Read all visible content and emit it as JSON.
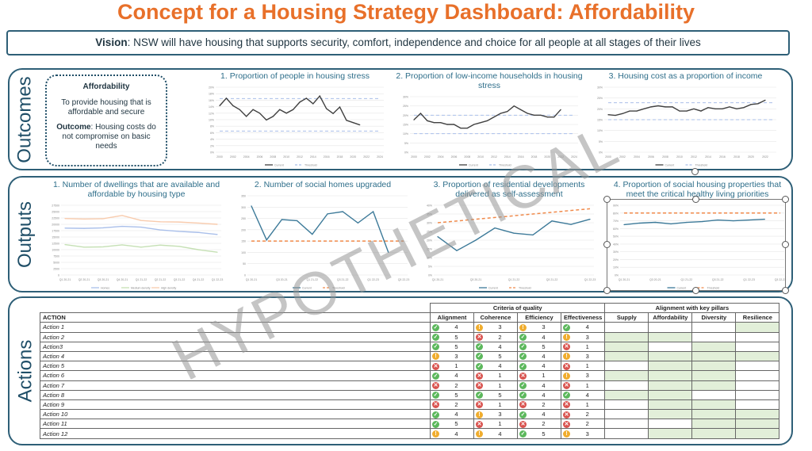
{
  "title": "Concept for a Housing Strategy Dashboard: Affordability",
  "vision": {
    "label": "Vision",
    "text": ": NSW will have housing that supports security, comfort, independence and choice for all people at all stages of their lives"
  },
  "watermark": "HYPOTHETICAL",
  "sections": {
    "outcomes": "Outcomes",
    "outputs": "Outputs",
    "actions": "Actions"
  },
  "affordability": {
    "heading": "Affordability",
    "description": "To provide housing that is affordable and secure",
    "outcome_label": "Outcome",
    "outcome_text": ": Housing costs do not compromise on basic needs"
  },
  "colors": {
    "accent": "#E8702A",
    "frame": "#2E5F77",
    "current": "#404040",
    "current_blue": "#3D7A99",
    "threshold_blue": "#A9BFEA",
    "threshold_orange": "#F08A4B"
  },
  "chart_data": [
    {
      "id": "outcome-1",
      "type": "line",
      "title": "1. Proportion of people in housing stress",
      "ylim": [
        0,
        20
      ],
      "yticks": [
        "0%",
        "2%",
        "4%",
        "6%",
        "8%",
        "10%",
        "12%",
        "14%",
        "16%",
        "18%",
        "20%"
      ],
      "yvals": [
        0,
        2,
        4,
        6,
        8,
        10,
        12,
        14,
        16,
        18,
        20
      ],
      "xcount": 25,
      "xticks": [
        "2000",
        "2002",
        "2004",
        "2006",
        "2008",
        "2010",
        "2012",
        "2014",
        "2016",
        "2018",
        "2020",
        "2022",
        "2024"
      ],
      "xtick_step": 2,
      "series": [
        {
          "name": "Current",
          "color": "#404040",
          "values": [
            14.3,
            16.6,
            14.3,
            13.1,
            11,
            13.1,
            12,
            9.9,
            11,
            13.1,
            12,
            13.1,
            15.4,
            16.6,
            14.9,
            17.3,
            13.4,
            11.9,
            13.9,
            9.8,
            9.1,
            8.4
          ]
        }
      ],
      "thresholds": [
        {
          "name": "Threshold",
          "color": "#A9BFEA",
          "values": [
            16.5,
            16.5
          ]
        },
        {
          "name": "Threshold",
          "color": "#A9BFEA",
          "values": [
            6.5,
            6.5
          ]
        }
      ],
      "legend": [
        "Current",
        "Threshold"
      ]
    },
    {
      "id": "outcome-2",
      "type": "line",
      "title": "2. Proportion of low-income households in housing stress",
      "ylim": [
        0,
        30
      ],
      "yticks": [
        "0%",
        "5%",
        "10%",
        "15%",
        "20%",
        "25%",
        "30%"
      ],
      "yvals": [
        0,
        5,
        10,
        15,
        20,
        25,
        30
      ],
      "xcount": 25,
      "xticks": [
        "2000",
        "2002",
        "2004",
        "2006",
        "2008",
        "2010",
        "2012",
        "2014",
        "2016",
        "2018",
        "2020",
        "2022",
        "2024"
      ],
      "xtick_step": 2,
      "series": [
        {
          "name": "Current",
          "color": "#404040",
          "values": [
            17.5,
            21,
            17,
            16,
            16,
            15,
            15,
            13,
            13,
            15,
            16,
            17,
            19,
            21,
            22,
            25,
            23,
            21,
            20,
            20,
            19,
            19,
            23
          ]
        }
      ],
      "thresholds": [
        {
          "name": "Threshold",
          "color": "#A9BFEA",
          "values": [
            20,
            20
          ]
        },
        {
          "name": "Threshold",
          "color": "#A9BFEA",
          "values": [
            10,
            10
          ]
        }
      ],
      "legend": [
        "Current",
        "Threshold"
      ]
    },
    {
      "id": "outcome-3",
      "type": "line",
      "title": "3. Housing cost as a proportion of income",
      "ylim": [
        0,
        30
      ],
      "yticks": [
        "0%",
        "5%",
        "10%",
        "15%",
        "20%",
        "25%",
        "30%"
      ],
      "yvals": [
        0,
        5,
        10,
        15,
        20,
        25,
        30
      ],
      "xcount": 24,
      "xticks": [
        "2000",
        "2002",
        "2004",
        "2006",
        "2008",
        "2010",
        "2012",
        "2014",
        "2016",
        "2018",
        "2020",
        "2022"
      ],
      "xtick_step": 2,
      "series": [
        {
          "name": "Current",
          "color": "#404040",
          "values": [
            17.3,
            17,
            17.8,
            19,
            19,
            20,
            20.9,
            21.4,
            20.9,
            20.9,
            19,
            19,
            20,
            19,
            20.6,
            20,
            20,
            20.9,
            20,
            20.6,
            22,
            22.4,
            24
          ]
        }
      ],
      "thresholds": [
        {
          "name": "Threshold",
          "color": "#A9BFEA",
          "values": [
            22.8,
            22.8
          ]
        },
        {
          "name": "Threshold",
          "color": "#A9BFEA",
          "values": [
            15,
            15
          ]
        }
      ],
      "legend": [
        "Current",
        "Threshold"
      ]
    },
    {
      "id": "output-1",
      "type": "line",
      "title": "1. Number of dwellings that are available and affordable by housing type",
      "ylim": [
        0,
        27500
      ],
      "yticks": [
        "0",
        "2500",
        "5000",
        "7500",
        "10000",
        "12500",
        "15000",
        "17500",
        "20000",
        "22500",
        "25000",
        "27500"
      ],
      "yvals": [
        0,
        2500,
        5000,
        7500,
        10000,
        12500,
        15000,
        17500,
        20000,
        22500,
        25000,
        27500
      ],
      "xcount": 9,
      "xticks": [
        "Q1 20-21",
        "Q2 20-21",
        "Q3 20-21",
        "Q4 20-21",
        "Q1 21-22",
        "Q2 21-22",
        "Q3 21-22",
        "Q4 21-22",
        "Q1 22-23"
      ],
      "xtick_step": 1,
      "series": [
        {
          "name": "Homes",
          "color": "#A9BFEA",
          "values": [
            18500,
            18400,
            18600,
            19200,
            18900,
            17800,
            17200,
            16800,
            16000
          ]
        },
        {
          "name": "Medium density",
          "color": "#C5E0B4",
          "values": [
            12000,
            11000,
            11100,
            11900,
            11000,
            11800,
            11300,
            10000,
            9000
          ]
        },
        {
          "name": "High density",
          "color": "#F8CBAD",
          "values": [
            22300,
            22100,
            22200,
            23500,
            21500,
            21000,
            20900,
            20500,
            20000
          ]
        }
      ],
      "thresholds": [],
      "legend": [
        "Homes",
        "Medium density",
        "High density"
      ]
    },
    {
      "id": "output-2",
      "type": "line",
      "title": "2. Number of social homes upgraded",
      "ylim": [
        0,
        350
      ],
      "yticks": [
        "0",
        "50",
        "100",
        "150",
        "200",
        "250",
        "300",
        "350"
      ],
      "yvals": [
        0,
        50,
        100,
        150,
        200,
        250,
        300,
        350
      ],
      "xcount": 11,
      "xticks": [
        "Q1 20-21",
        "Q3 20-21",
        "Q1 21-22",
        "Q3 21-22",
        "Q1 22-23",
        "Q3 22-23"
      ],
      "xtick_step": 2,
      "series": [
        {
          "name": "Current",
          "color": "#3D7A99",
          "values": [
            305,
            155,
            245,
            240,
            180,
            270,
            280,
            230,
            280,
            100
          ]
        }
      ],
      "thresholds": [
        {
          "name": "Threshold",
          "color": "#F08A4B",
          "values": [
            150,
            150
          ]
        }
      ],
      "legend": [
        "Current",
        "Threshold"
      ]
    },
    {
      "id": "output-3",
      "type": "line",
      "title": "3. Proportion of residential developments delivered as self-assessment",
      "ylim": [
        0,
        40
      ],
      "yticks": [
        "0%",
        "5%",
        "10%",
        "15%",
        "20%",
        "25%",
        "30%",
        "35%",
        "40%"
      ],
      "yvals": [
        0,
        5,
        10,
        15,
        20,
        25,
        30,
        35,
        40
      ],
      "xcount": 9,
      "xticks": [
        "Q1 20-21",
        "Q3 20-21",
        "Q1 21-22",
        "Q3 21-22",
        "Q1 22-23"
      ],
      "xtick_step": 2,
      "series": [
        {
          "name": "Current",
          "color": "#3D7A99",
          "values": [
            22,
            14,
            20,
            27,
            24,
            23,
            31,
            29,
            32
          ]
        }
      ],
      "thresholds": [
        {
          "name": "Threshold",
          "color": "#F08A4B",
          "values": [
            30,
            38
          ]
        }
      ],
      "legend": [
        "Current",
        "Threshold"
      ]
    },
    {
      "id": "output-4",
      "type": "line",
      "title": "4. Proportion of social housing properties that meet the critical healthy living priorities",
      "ylim": [
        0,
        90
      ],
      "yticks": [
        "0%",
        "10%",
        "20%",
        "30%",
        "40%",
        "50%",
        "60%",
        "70%",
        "80%",
        "90%"
      ],
      "yvals": [
        0,
        10,
        20,
        30,
        40,
        50,
        60,
        70,
        80,
        90
      ],
      "xcount": 11,
      "xticks": [
        "Q1 20-21",
        "Q3 20-21",
        "Q1 21-22",
        "Q3 21-22",
        "Q1 22-23",
        "Q3 22-23"
      ],
      "xtick_step": 2,
      "series": [
        {
          "name": "Current",
          "color": "#3D7A99",
          "values": [
            65,
            67,
            68,
            66,
            68,
            69,
            71,
            70,
            71,
            72
          ]
        }
      ],
      "thresholds": [
        {
          "name": "Threshold",
          "color": "#F08A4B",
          "values": [
            80,
            80
          ]
        }
      ],
      "legend": [
        "Current",
        "Threshold"
      ]
    }
  ],
  "actions_table": {
    "group_criteria": "Criteria of quality",
    "group_pillars": "Alignment with key pillars",
    "action_header": "ACTION",
    "criteria": [
      "Alignment",
      "Coherence",
      "Efficiency",
      "Effectiveness"
    ],
    "pillars": [
      "Supply",
      "Affordability",
      "Diversity",
      "Resilience"
    ],
    "rows": [
      {
        "action": "Action 1",
        "scores": [
          [
            "g",
            4
          ],
          [
            "y",
            3
          ],
          [
            "y",
            3
          ],
          [
            "g",
            4
          ]
        ],
        "pillars": [
          0,
          0,
          0,
          1
        ]
      },
      {
        "action": "Action 2",
        "scores": [
          [
            "g",
            5
          ],
          [
            "r",
            2
          ],
          [
            "g",
            4
          ],
          [
            "y",
            3
          ]
        ],
        "pillars": [
          1,
          1,
          0,
          0
        ]
      },
      {
        "action": "Action3",
        "scores": [
          [
            "g",
            5
          ],
          [
            "g",
            4
          ],
          [
            "g",
            5
          ],
          [
            "r",
            1
          ]
        ],
        "pillars": [
          1,
          0,
          1,
          0
        ]
      },
      {
        "action": "Action 4",
        "scores": [
          [
            "y",
            3
          ],
          [
            "g",
            5
          ],
          [
            "g",
            4
          ],
          [
            "y",
            3
          ]
        ],
        "pillars": [
          1,
          1,
          1,
          1
        ]
      },
      {
        "action": "Action 5",
        "scores": [
          [
            "r",
            1
          ],
          [
            "g",
            4
          ],
          [
            "g",
            4
          ],
          [
            "r",
            1
          ]
        ],
        "pillars": [
          0,
          1,
          1,
          0
        ]
      },
      {
        "action": "Action 6",
        "scores": [
          [
            "g",
            4
          ],
          [
            "r",
            1
          ],
          [
            "r",
            1
          ],
          [
            "y",
            3
          ]
        ],
        "pillars": [
          1,
          1,
          1,
          0
        ]
      },
      {
        "action": "Action 7",
        "scores": [
          [
            "r",
            2
          ],
          [
            "r",
            1
          ],
          [
            "g",
            4
          ],
          [
            "r",
            1
          ]
        ],
        "pillars": [
          0,
          1,
          1,
          0
        ]
      },
      {
        "action": "Action 8",
        "scores": [
          [
            "g",
            5
          ],
          [
            "g",
            5
          ],
          [
            "g",
            4
          ],
          [
            "g",
            4
          ]
        ],
        "pillars": [
          1,
          1,
          0,
          0
        ]
      },
      {
        "action": "Action 9",
        "scores": [
          [
            "r",
            2
          ],
          [
            "r",
            1
          ],
          [
            "r",
            2
          ],
          [
            "r",
            1
          ]
        ],
        "pillars": [
          0,
          1,
          1,
          0
        ]
      },
      {
        "action": "Action 10",
        "scores": [
          [
            "g",
            4
          ],
          [
            "y",
            3
          ],
          [
            "g",
            4
          ],
          [
            "r",
            2
          ]
        ],
        "pillars": [
          0,
          1,
          1,
          1
        ]
      },
      {
        "action": "Action 11",
        "scores": [
          [
            "g",
            5
          ],
          [
            "r",
            1
          ],
          [
            "r",
            2
          ],
          [
            "r",
            2
          ]
        ],
        "pillars": [
          0,
          0,
          1,
          1
        ]
      },
      {
        "action": "Action 12",
        "scores": [
          [
            "y",
            4
          ],
          [
            "y",
            4
          ],
          [
            "g",
            5
          ],
          [
            "y",
            3
          ]
        ],
        "pillars": [
          0,
          1,
          1,
          1
        ]
      }
    ]
  }
}
